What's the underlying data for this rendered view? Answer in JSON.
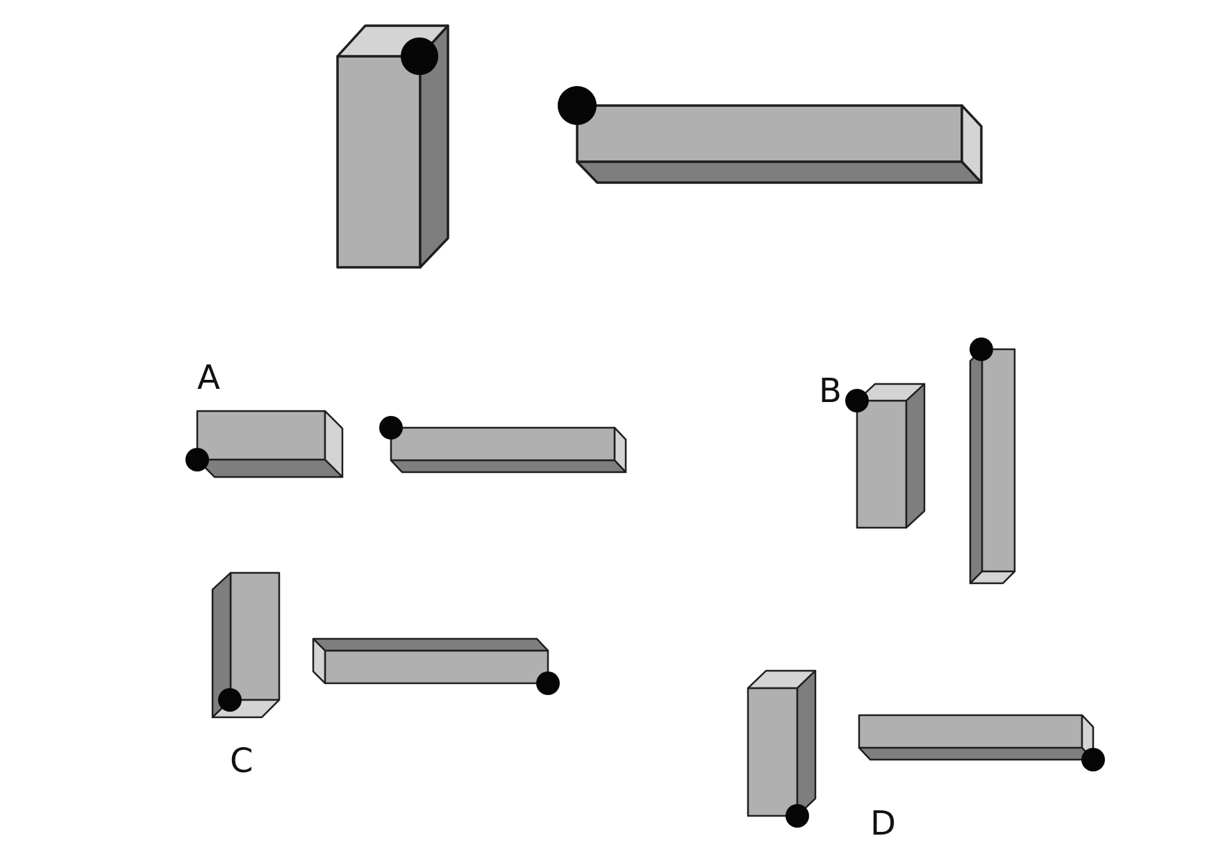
{
  "colors": {
    "front": "#b0b0b0",
    "top": "#d4d4d4",
    "side": "#7e7e7e",
    "outline": "#1e1e1e",
    "dot": "#060606",
    "background": "#ffffff"
  },
  "options": [
    {
      "id": "A",
      "label": "A"
    },
    {
      "id": "B",
      "label": "B"
    },
    {
      "id": "C",
      "label": "C"
    },
    {
      "id": "D",
      "label": "D"
    }
  ]
}
